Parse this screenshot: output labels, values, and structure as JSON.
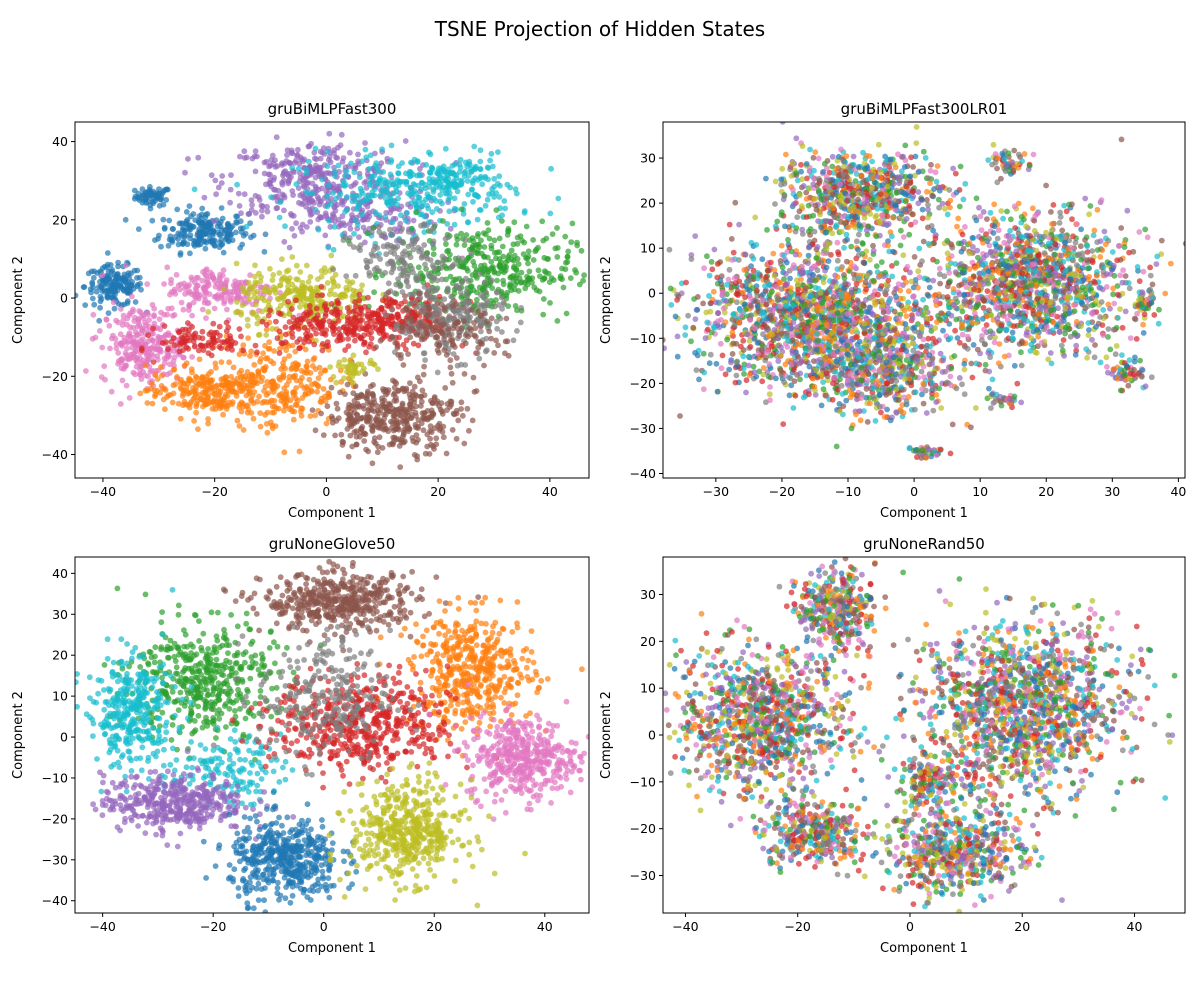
{
  "figure": {
    "suptitle": "TSNE Projection of Hidden States"
  },
  "chart_data": [
    {
      "type": "scatter",
      "title": "gruBiMLPFast300",
      "xlabel": "Component 1",
      "ylabel": "Component 2",
      "xlim": [
        -45,
        47
      ],
      "ylim": [
        -46,
        45
      ],
      "xticks": [
        -40,
        -20,
        0,
        20,
        40
      ],
      "yticks": [
        -40,
        -20,
        0,
        20,
        40
      ],
      "grid": false,
      "legend": "none",
      "clusters": [
        {
          "color": "#1f77b4",
          "cx": -31,
          "cy": 26,
          "sx": 1.6,
          "sy": 1.2,
          "n": 60
        },
        {
          "color": "#1f77b4",
          "cx": -22,
          "cy": 17,
          "sx": 4.0,
          "sy": 2.6,
          "n": 200
        },
        {
          "color": "#1f77b4",
          "cx": -38,
          "cy": 3,
          "sx": 2.6,
          "sy": 2.6,
          "n": 160
        },
        {
          "color": "#9467bd",
          "cx": -2,
          "cy": 31,
          "sx": 8.0,
          "sy": 4.5,
          "n": 300
        },
        {
          "color": "#9467bd",
          "cx": 4,
          "cy": 21,
          "sx": 8.0,
          "sy": 3.5,
          "n": 180
        },
        {
          "color": "#17becf",
          "cx": 14,
          "cy": 27,
          "sx": 10.0,
          "sy": 5.0,
          "n": 280
        },
        {
          "color": "#17becf",
          "cx": 23,
          "cy": 30,
          "sx": 4.0,
          "sy": 3.0,
          "n": 120
        },
        {
          "color": "#2ca02c",
          "cx": 28,
          "cy": 7,
          "sx": 8.0,
          "sy": 6.0,
          "n": 380
        },
        {
          "color": "#e377c2",
          "cx": -19,
          "cy": 2,
          "sx": 5.0,
          "sy": 3.0,
          "n": 180
        },
        {
          "color": "#e377c2",
          "cx": -33,
          "cy": -12,
          "sx": 3.6,
          "sy": 5.0,
          "n": 260
        },
        {
          "color": "#ff7f0e",
          "cx": -22,
          "cy": -24,
          "sx": 5.0,
          "sy": 3.2,
          "n": 220
        },
        {
          "color": "#ff7f0e",
          "cx": -8,
          "cy": -21,
          "sx": 5.0,
          "sy": 6.0,
          "n": 260
        },
        {
          "color": "#bcbd22",
          "cx": -4,
          "cy": 0,
          "sx": 6.0,
          "sy": 4.0,
          "n": 260
        },
        {
          "color": "#d62728",
          "cx": 2,
          "cy": -7,
          "sx": 7.0,
          "sy": 3.0,
          "n": 240
        },
        {
          "color": "#d62728",
          "cx": 14,
          "cy": -5,
          "sx": 5.0,
          "sy": 3.0,
          "n": 160
        },
        {
          "color": "#d62728",
          "cx": -22,
          "cy": -11,
          "sx": 4.0,
          "sy": 2.0,
          "n": 90
        },
        {
          "color": "#7f7f7f",
          "cx": 22,
          "cy": -5,
          "sx": 5.0,
          "sy": 5.0,
          "n": 220
        },
        {
          "color": "#7f7f7f",
          "cx": 14,
          "cy": 10,
          "sx": 5.0,
          "sy": 4.0,
          "n": 140
        },
        {
          "color": "#8c564b",
          "cx": 12,
          "cy": -30,
          "sx": 6.0,
          "sy": 4.5,
          "n": 380
        },
        {
          "color": "#8c564b",
          "cx": 20,
          "cy": -10,
          "sx": 6.0,
          "sy": 4.0,
          "n": 120
        },
        {
          "color": "#bcbd22",
          "cx": 5,
          "cy": -18,
          "sx": 2.0,
          "sy": 1.5,
          "n": 40
        }
      ]
    },
    {
      "type": "scatter",
      "title": "gruBiMLPFast300LR01",
      "xlabel": "Component 1",
      "ylabel": "Component 2",
      "xlim": [
        -38,
        41
      ],
      "ylim": [
        -41,
        38
      ],
      "xticks": [
        -30,
        -20,
        -10,
        0,
        10,
        20,
        30,
        40
      ],
      "yticks": [
        -40,
        -30,
        -20,
        -10,
        0,
        10,
        20,
        30
      ],
      "grid": false,
      "legend": "none",
      "clusters": [
        {
          "color": "mix",
          "cx": -8,
          "cy": 22,
          "sx": 6.0,
          "sy": 4.5,
          "n": 700
        },
        {
          "color": "mix",
          "cx": -15,
          "cy": -5,
          "sx": 9.0,
          "sy": 8.0,
          "n": 1600
        },
        {
          "color": "mix",
          "cx": -5,
          "cy": -17,
          "sx": 6.0,
          "sy": 5.0,
          "n": 500
        },
        {
          "color": "mix",
          "cx": 18,
          "cy": 2,
          "sx": 7.0,
          "sy": 7.5,
          "n": 1300
        },
        {
          "color": "mix",
          "cx": 14,
          "cy": 29,
          "sx": 2.0,
          "sy": 1.5,
          "n": 50
        },
        {
          "color": "mix",
          "cx": 35,
          "cy": -2,
          "sx": 1.0,
          "sy": 1.5,
          "n": 40
        },
        {
          "color": "mix",
          "cx": 32,
          "cy": -18,
          "sx": 1.4,
          "sy": 1.5,
          "n": 60
        },
        {
          "color": "mix",
          "cx": 2,
          "cy": -35,
          "sx": 1.4,
          "sy": 0.8,
          "n": 40
        },
        {
          "color": "mix",
          "cx": 13,
          "cy": -24,
          "sx": 1.5,
          "sy": 1.0,
          "n": 30
        }
      ]
    },
    {
      "type": "scatter",
      "title": "gruNoneGlove50",
      "xlabel": "Component 1",
      "ylabel": "Component 2",
      "xlim": [
        -45,
        48
      ],
      "ylim": [
        -43,
        44
      ],
      "xticks": [
        -40,
        -20,
        0,
        20,
        40
      ],
      "yticks": [
        -40,
        -30,
        -20,
        -10,
        0,
        10,
        20,
        30,
        40
      ],
      "grid": false,
      "legend": "none",
      "clusters": [
        {
          "color": "#8c564b",
          "cx": 3,
          "cy": 33,
          "sx": 7.0,
          "sy": 3.5,
          "n": 450
        },
        {
          "color": "#ff7f0e",
          "cx": 27,
          "cy": 16,
          "sx": 5.5,
          "sy": 7.0,
          "n": 450
        },
        {
          "color": "#2ca02c",
          "cx": -22,
          "cy": 14,
          "sx": 6.5,
          "sy": 7.0,
          "n": 450
        },
        {
          "color": "#17becf",
          "cx": -35,
          "cy": 6,
          "sx": 4.0,
          "sy": 7.0,
          "n": 320
        },
        {
          "color": "#17becf",
          "cx": -18,
          "cy": -8,
          "sx": 5.0,
          "sy": 4.0,
          "n": 140
        },
        {
          "color": "#d62728",
          "cx": 7,
          "cy": 3,
          "sx": 8.0,
          "sy": 6.0,
          "n": 500
        },
        {
          "color": "#7f7f7f",
          "cx": 0,
          "cy": 10,
          "sx": 6.0,
          "sy": 8.0,
          "n": 240
        },
        {
          "color": "#e377c2",
          "cx": 36,
          "cy": -5,
          "sx": 5.0,
          "sy": 5.0,
          "n": 400
        },
        {
          "color": "#9467bd",
          "cx": -27,
          "cy": -16,
          "sx": 6.5,
          "sy": 3.5,
          "n": 400
        },
        {
          "color": "#1f77b4",
          "cx": -7,
          "cy": -30,
          "sx": 5.0,
          "sy": 5.0,
          "n": 450
        },
        {
          "color": "#bcbd22",
          "cx": 15,
          "cy": -23,
          "sx": 5.0,
          "sy": 6.0,
          "n": 450
        }
      ]
    },
    {
      "type": "scatter",
      "title": "gruNoneRand50",
      "xlabel": "Component 1",
      "ylabel": "Component 2",
      "xlim": [
        -44,
        49
      ],
      "ylim": [
        -38,
        38
      ],
      "xticks": [
        -40,
        -20,
        0,
        20,
        40
      ],
      "yticks": [
        -30,
        -20,
        -10,
        0,
        10,
        20,
        30
      ],
      "grid": false,
      "legend": "none",
      "clusters": [
        {
          "color": "mix",
          "cx": -13,
          "cy": 27,
          "sx": 3.5,
          "sy": 4.0,
          "n": 350
        },
        {
          "color": "mix",
          "cx": -26,
          "cy": 3,
          "sx": 7.5,
          "sy": 8.0,
          "n": 1000
        },
        {
          "color": "mix",
          "cx": -17,
          "cy": -21,
          "sx": 4.5,
          "sy": 3.5,
          "n": 350
        },
        {
          "color": "mix",
          "cx": 20,
          "cy": 6,
          "sx": 9.0,
          "sy": 9.0,
          "n": 1400
        },
        {
          "color": "mix",
          "cx": 8,
          "cy": -25,
          "sx": 6.0,
          "sy": 4.5,
          "n": 550
        },
        {
          "color": "mix",
          "cx": 4,
          "cy": -10,
          "sx": 3.0,
          "sy": 3.0,
          "n": 160
        }
      ],
      "points": [
        {
          "x": 46,
          "y": 0,
          "color": "#7f7f7f"
        }
      ]
    }
  ]
}
